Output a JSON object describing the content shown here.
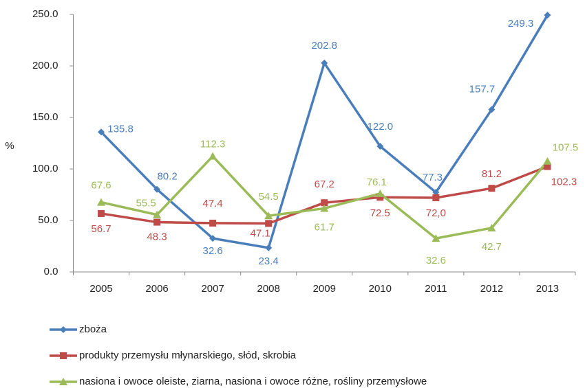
{
  "chart_data": {
    "type": "line",
    "y_label": "%",
    "categories": [
      "2005",
      "2006",
      "2007",
      "2008",
      "2009",
      "2010",
      "2011",
      "2012",
      "2013"
    ],
    "ylim": [
      0,
      250
    ],
    "yticks": [
      {
        "value": 0,
        "label": "0.0"
      },
      {
        "value": 50,
        "label": "50.0"
      },
      {
        "value": 100,
        "label": "100.0"
      },
      {
        "value": 150,
        "label": "150.0"
      },
      {
        "value": 200,
        "label": "200.0"
      },
      {
        "value": 250,
        "label": "250.0"
      }
    ],
    "grid": false,
    "legend": "bottom",
    "series": [
      {
        "name": "zboża",
        "color": "#4a7ebb",
        "marker": "diamond",
        "values": [
          135.8,
          80.2,
          32.6,
          23.4,
          202.8,
          122.0,
          77.3,
          157.7,
          249.3
        ],
        "value_labels": [
          "135.8",
          "80.2",
          "32.6",
          "23.4",
          "202.8",
          "122.0",
          "77.3",
          "157.7",
          "249.3"
        ]
      },
      {
        "name": "produkty przemysłu młynarskiego, słód, skrobia",
        "color": "#be4b48",
        "marker": "square",
        "values": [
          56.7,
          48.3,
          47.4,
          47.1,
          67.2,
          72.5,
          72.0,
          81.2,
          102.3
        ],
        "value_labels": [
          "56.7",
          "48.3",
          "47.4",
          "47.1",
          "67.2",
          "72.5",
          "72,0",
          "81.2",
          "102.3"
        ]
      },
      {
        "name": "nasiona i owoce oleiste, ziarna, nasiona i owoce różne, rośliny przemysłowe",
        "color": "#9bbb59",
        "marker": "triangle",
        "values": [
          67.6,
          55.5,
          112.3,
          54.5,
          61.7,
          76.1,
          32.6,
          42.7,
          107.5
        ],
        "value_labels": [
          "67.6",
          "55.5",
          "112.3",
          "54.5",
          "61.7",
          "76.1",
          "32.6",
          "42.7",
          "107.5"
        ]
      }
    ]
  }
}
